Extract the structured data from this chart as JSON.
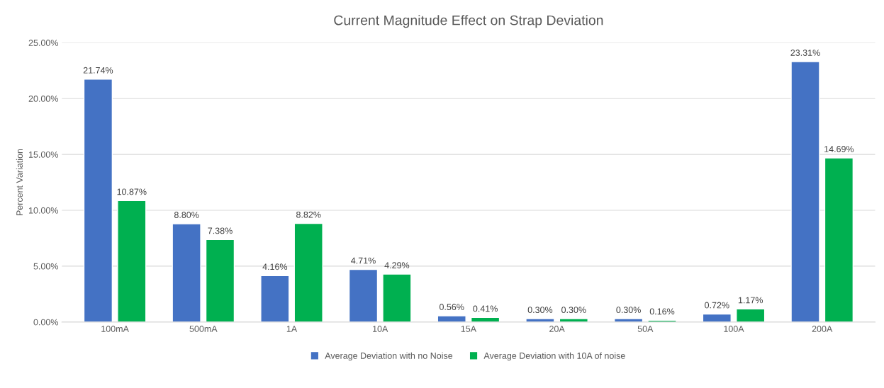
{
  "chart_data": {
    "type": "bar",
    "title": "Current Magnitude Effect on Strap Deviation",
    "ylabel": "Percent Variation",
    "categories": [
      "100mA",
      "500mA",
      "1A",
      "10A",
      "15A",
      "20A",
      "50A",
      "100A",
      "200A"
    ],
    "series": [
      {
        "name": "Average Deviation with no Noise",
        "color": "#4472c4",
        "values": [
          21.74,
          8.8,
          4.16,
          4.71,
          0.56,
          0.3,
          0.3,
          0.72,
          23.31
        ],
        "value_labels": [
          "21.74%",
          "8.80%",
          "4.16%",
          "4.71%",
          "0.56%",
          "0.30%",
          "0.30%",
          "0.72%",
          "23.31%"
        ]
      },
      {
        "name": "Average Deviation with 10A of noise",
        "color": "#00b050",
        "values": [
          10.87,
          7.38,
          8.82,
          4.29,
          0.41,
          0.3,
          0.16,
          1.17,
          14.69
        ],
        "value_labels": [
          "10.87%",
          "7.38%",
          "8.82%",
          "4.29%",
          "0.41%",
          "0.30%",
          "0.16%",
          "1.17%",
          "14.69%"
        ]
      }
    ],
    "ylim": [
      0,
      25
    ],
    "yticks": [
      {
        "value": 0,
        "label": "0.00%"
      },
      {
        "value": 5,
        "label": "5.00%"
      },
      {
        "value": 10,
        "label": "10.00%"
      },
      {
        "value": 15,
        "label": "15.00%"
      },
      {
        "value": 20,
        "label": "20.00%"
      },
      {
        "value": 25,
        "label": "25.00%"
      }
    ],
    "grid": "y",
    "legend": "bottom"
  }
}
